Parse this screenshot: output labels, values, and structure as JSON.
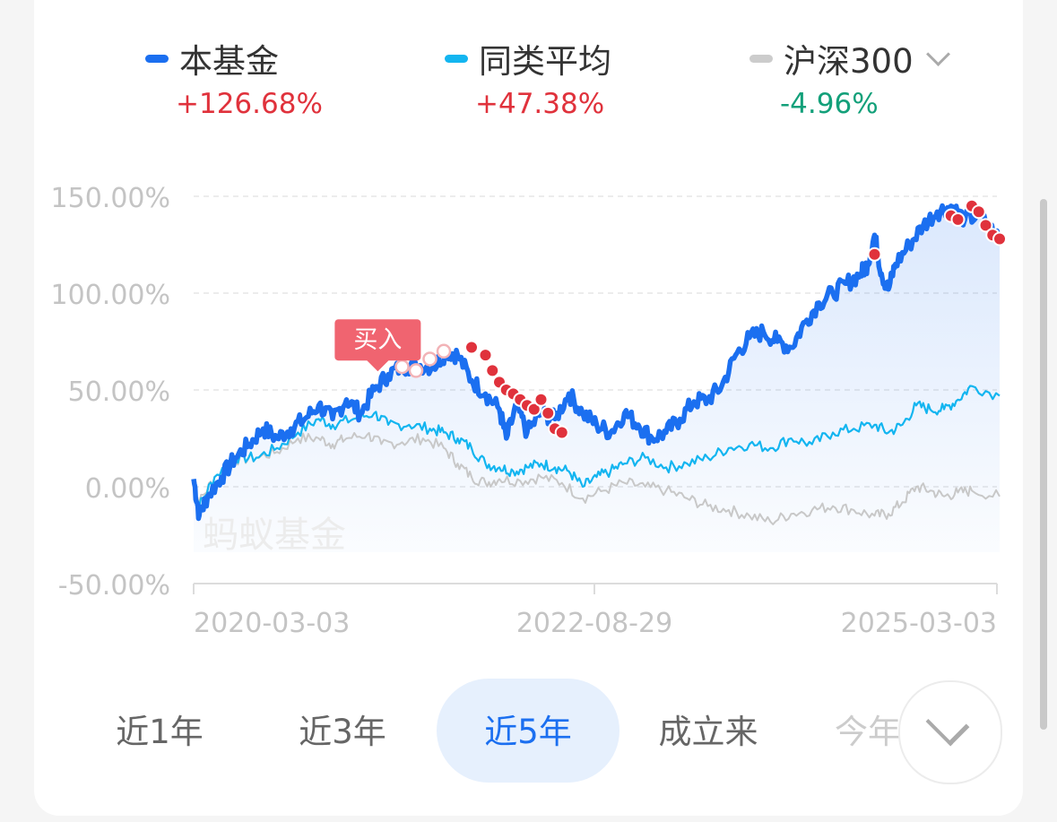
{
  "legend": [
    {
      "name": "本基金",
      "value": "+126.68%",
      "color": "#1b6ff0",
      "value_color": "#e0323c"
    },
    {
      "name": "同类平均",
      "value": "+47.38%",
      "color": "#13b5f0",
      "value_color": "#e0323c"
    },
    {
      "name": "沪深300",
      "value": "-4.96%",
      "color": "#cccccc",
      "value_color": "#13a07a",
      "has_dropdown": true
    }
  ],
  "chart_data": {
    "type": "line",
    "y_ticks": [
      "150.00%",
      "100.00%",
      "50.00%",
      "0.00%",
      "-50.00%"
    ],
    "y_tick_values": [
      150,
      100,
      50,
      0,
      -50
    ],
    "ylim": [
      -50,
      150
    ],
    "x_ticks": [
      "2020-03-03",
      "2022-08-29",
      "2025-03-03"
    ],
    "watermark": "蚂蚁基金",
    "buy_marker": {
      "label": "买入",
      "x": 0.265,
      "y": 55
    },
    "series": [
      {
        "name": "本基金",
        "color": "#1b6ff0",
        "points": [
          [
            0,
            4
          ],
          [
            0.008,
            -15
          ],
          [
            0.02,
            -5
          ],
          [
            0.04,
            5
          ],
          [
            0.06,
            15
          ],
          [
            0.08,
            22
          ],
          [
            0.1,
            30
          ],
          [
            0.12,
            25
          ],
          [
            0.14,
            30
          ],
          [
            0.16,
            35
          ],
          [
            0.18,
            42
          ],
          [
            0.2,
            35
          ],
          [
            0.22,
            45
          ],
          [
            0.24,
            38
          ],
          [
            0.26,
            50
          ],
          [
            0.28,
            58
          ],
          [
            0.3,
            62
          ],
          [
            0.32,
            63
          ],
          [
            0.345,
            62
          ],
          [
            0.365,
            70
          ],
          [
            0.38,
            68
          ],
          [
            0.4,
            55
          ],
          [
            0.42,
            48
          ],
          [
            0.44,
            40
          ],
          [
            0.45,
            25
          ],
          [
            0.465,
            42
          ],
          [
            0.48,
            28
          ],
          [
            0.5,
            38
          ],
          [
            0.52,
            35
          ],
          [
            0.54,
            48
          ],
          [
            0.56,
            38
          ],
          [
            0.58,
            32
          ],
          [
            0.6,
            28
          ],
          [
            0.62,
            38
          ],
          [
            0.64,
            32
          ],
          [
            0.66,
            25
          ],
          [
            0.68,
            28
          ],
          [
            0.7,
            35
          ],
          [
            0.72,
            44
          ],
          [
            0.74,
            45
          ],
          [
            0.76,
            52
          ],
          [
            0.78,
            68
          ],
          [
            0.8,
            77
          ],
          [
            0.82,
            80
          ],
          [
            0.84,
            75
          ],
          [
            0.86,
            72
          ],
          [
            0.88,
            85
          ],
          [
            0.9,
            95
          ],
          [
            0.92,
            100
          ],
          [
            0.94,
            105
          ],
          [
            0.96,
            110
          ],
          [
            0.97,
            115
          ],
          [
            0.98,
            130
          ],
          [
            0.99,
            110
          ],
          [
            1.0,
            102
          ],
          [
            1.01,
            115
          ],
          [
            1.03,
            125
          ],
          [
            1.05,
            135
          ],
          [
            1.07,
            142
          ],
          [
            1.09,
            145
          ],
          [
            1.11,
            138
          ],
          [
            1.13,
            140
          ],
          [
            1.16,
            128
          ]
        ]
      },
      {
        "name": "同类平均",
        "color": "#13b5f0",
        "points": [
          [
            0,
            0
          ],
          [
            0.008,
            -10
          ],
          [
            0.03,
            5
          ],
          [
            0.06,
            15
          ],
          [
            0.09,
            15
          ],
          [
            0.12,
            20
          ],
          [
            0.15,
            28
          ],
          [
            0.18,
            35
          ],
          [
            0.2,
            32
          ],
          [
            0.23,
            35
          ],
          [
            0.26,
            38
          ],
          [
            0.28,
            32
          ],
          [
            0.31,
            32
          ],
          [
            0.34,
            30
          ],
          [
            0.36,
            28
          ],
          [
            0.38,
            25
          ],
          [
            0.4,
            20
          ],
          [
            0.42,
            12
          ],
          [
            0.44,
            10
          ],
          [
            0.46,
            8
          ],
          [
            0.48,
            10
          ],
          [
            0.5,
            12
          ],
          [
            0.52,
            10
          ],
          [
            0.54,
            8
          ],
          [
            0.56,
            0
          ],
          [
            0.58,
            5
          ],
          [
            0.6,
            8
          ],
          [
            0.62,
            12
          ],
          [
            0.65,
            15
          ],
          [
            0.68,
            10
          ],
          [
            0.71,
            12
          ],
          [
            0.74,
            15
          ],
          [
            0.77,
            20
          ],
          [
            0.8,
            22
          ],
          [
            0.83,
            20
          ],
          [
            0.86,
            25
          ],
          [
            0.89,
            22
          ],
          [
            0.92,
            28
          ],
          [
            0.95,
            30
          ],
          [
            0.98,
            32
          ],
          [
            1.0,
            28
          ],
          [
            1.02,
            32
          ],
          [
            1.04,
            42
          ],
          [
            1.06,
            40
          ],
          [
            1.08,
            40
          ],
          [
            1.1,
            45
          ],
          [
            1.12,
            52
          ],
          [
            1.16,
            47
          ]
        ]
      },
      {
        "name": "沪深300",
        "color": "#c8c8c8",
        "points": [
          [
            0,
            0
          ],
          [
            0.008,
            -8
          ],
          [
            0.03,
            5
          ],
          [
            0.06,
            14
          ],
          [
            0.09,
            15
          ],
          [
            0.12,
            18
          ],
          [
            0.15,
            25
          ],
          [
            0.18,
            25
          ],
          [
            0.2,
            22
          ],
          [
            0.22,
            25
          ],
          [
            0.25,
            27
          ],
          [
            0.27,
            22
          ],
          [
            0.3,
            23
          ],
          [
            0.33,
            25
          ],
          [
            0.36,
            20
          ],
          [
            0.38,
            12
          ],
          [
            0.4,
            5
          ],
          [
            0.42,
            2
          ],
          [
            0.44,
            4
          ],
          [
            0.47,
            3
          ],
          [
            0.5,
            5
          ],
          [
            0.53,
            2
          ],
          [
            0.56,
            -6
          ],
          [
            0.59,
            -2
          ],
          [
            0.62,
            2
          ],
          [
            0.65,
            0
          ],
          [
            0.68,
            -2
          ],
          [
            0.71,
            -6
          ],
          [
            0.74,
            -10
          ],
          [
            0.77,
            -12
          ],
          [
            0.8,
            -15
          ],
          [
            0.83,
            -18
          ],
          [
            0.86,
            -14
          ],
          [
            0.89,
            -12
          ],
          [
            0.92,
            -10
          ],
          [
            0.95,
            -12
          ],
          [
            0.98,
            -15
          ],
          [
            1.0,
            -14
          ],
          [
            1.02,
            -8
          ],
          [
            1.04,
            0
          ],
          [
            1.06,
            -2
          ],
          [
            1.08,
            -5
          ],
          [
            1.1,
            -3
          ],
          [
            1.12,
            -2
          ],
          [
            1.16,
            -5
          ]
        ]
      }
    ],
    "sell_dots": [
      [
        0.4,
        72
      ],
      [
        0.42,
        68
      ],
      [
        0.43,
        60
      ],
      [
        0.44,
        54
      ],
      [
        0.45,
        50
      ],
      [
        0.46,
        48
      ],
      [
        0.47,
        45
      ],
      [
        0.48,
        42
      ],
      [
        0.49,
        40
      ],
      [
        0.5,
        45
      ],
      [
        0.51,
        38
      ],
      [
        0.52,
        30
      ],
      [
        0.53,
        28
      ],
      [
        0.98,
        120
      ],
      [
        1.09,
        140
      ],
      [
        1.1,
        138
      ],
      [
        1.12,
        145
      ],
      [
        1.13,
        142
      ],
      [
        1.14,
        135
      ],
      [
        1.15,
        130
      ],
      [
        1.16,
        128
      ]
    ],
    "hollow_dots": [
      [
        0.3,
        62
      ],
      [
        0.32,
        60
      ],
      [
        0.34,
        66
      ],
      [
        0.36,
        70
      ]
    ]
  },
  "tabs": [
    "近1年",
    "近3年",
    "近5年",
    "成立来",
    "今年"
  ],
  "active_tab": 2
}
